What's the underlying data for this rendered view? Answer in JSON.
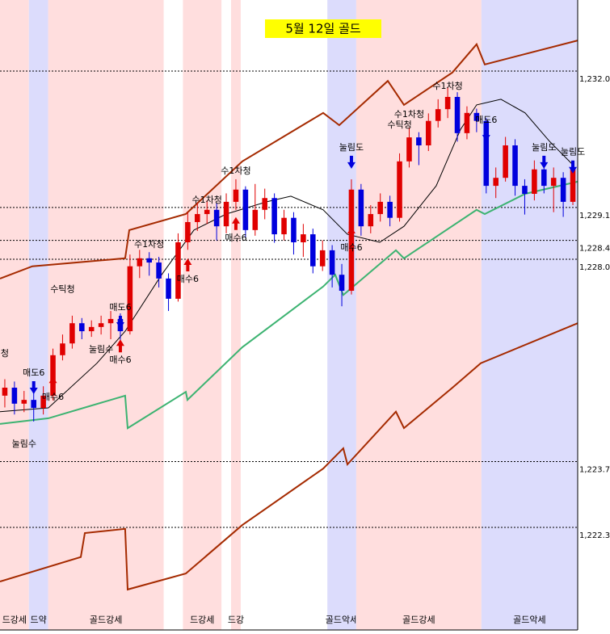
{
  "chart_data": {
    "type": "candlestick",
    "title": "5월 12일 골드",
    "xlim": [
      -0.5,
      59.5
    ],
    "ylim": [
      1220.12,
      1233.51
    ],
    "yticks": [
      {
        "value": 1232.0,
        "label": "1,232.0"
      },
      {
        "value": 1229.1,
        "label": "1,229.1"
      },
      {
        "value": 1228.4,
        "label": "1,228.4"
      },
      {
        "value": 1228.0,
        "label": "1,228.0"
      },
      {
        "value": 1223.7,
        "label": "1,223.7"
      },
      {
        "value": 1222.3,
        "label": "1,222.3"
      }
    ],
    "up_color": "#e00000",
    "down_color": "#0000dd",
    "bands": [
      {
        "from": 0,
        "to": 2,
        "color": "#ffdede",
        "label": "드강세"
      },
      {
        "from": 3,
        "to": 4,
        "color": "#dcdcfc",
        "label": "드약"
      },
      {
        "from": 5,
        "to": 16,
        "color": "#ffdede",
        "label": "골드강세"
      },
      {
        "from": 19,
        "to": 22,
        "color": "#ffdede",
        "label": "드강세"
      },
      {
        "from": 24,
        "to": 24,
        "color": "#ffdede",
        "label": "드강"
      },
      {
        "from": 34,
        "to": 36,
        "color": "#dcdcfc",
        "label": "골드악세"
      },
      {
        "from": 37,
        "to": 49,
        "color": "#ffdede",
        "label": "골드강세"
      },
      {
        "from": 50,
        "to": 59,
        "color": "#dcdcfc",
        "label": "골드악세"
      }
    ],
    "open": [
      1225.1,
      1225.27,
      1224.93,
      1225.01,
      1224.84,
      1225.1,
      1225.96,
      1226.21,
      1226.64,
      1226.47,
      1226.56,
      1226.64,
      1226.73,
      1226.47,
      1227.85,
      1228.02,
      1227.93,
      1227.59,
      1227.16,
      1228.36,
      1228.79,
      1228.96,
      1229.05,
      1228.7,
      1229.22,
      1229.48,
      1228.62,
      1229.05,
      1229.3,
      1228.53,
      1228.88,
      1228.36,
      1228.53,
      1227.85,
      1228.19,
      1227.67,
      1227.33,
      1229.48,
      1228.7,
      1228.96,
      1229.22,
      1228.88,
      1230.08,
      1230.59,
      1230.42,
      1230.94,
      1231.19,
      1231.45,
      1230.68,
      1231.11,
      1230.94,
      1229.56,
      1229.73,
      1230.42,
      1229.56,
      1229.39,
      1229.91,
      1229.56,
      1229.73,
      1229.22
    ],
    "high": [
      1225.45,
      1225.4,
      1225.2,
      1225.15,
      1225.3,
      1226.1,
      1226.4,
      1226.8,
      1226.75,
      1226.7,
      1226.8,
      1226.9,
      1226.85,
      1228.1,
      1228.2,
      1228.15,
      1228.05,
      1227.7,
      1228.55,
      1229.0,
      1229.2,
      1229.25,
      1229.2,
      1229.4,
      1229.7,
      1229.55,
      1229.6,
      1229.5,
      1229.4,
      1229.05,
      1229.0,
      1228.75,
      1228.65,
      1228.4,
      1228.3,
      1227.9,
      1229.7,
      1229.6,
      1229.15,
      1229.4,
      1229.35,
      1230.25,
      1230.8,
      1230.7,
      1231.1,
      1231.4,
      1231.65,
      1231.55,
      1231.25,
      1231.2,
      1231.0,
      1229.95,
      1230.6,
      1230.55,
      1229.7,
      1230.1,
      1230.05,
      1229.95,
      1229.85,
      1230.05
    ],
    "low": [
      1224.85,
      1224.7,
      1224.75,
      1224.55,
      1224.7,
      1225.0,
      1225.85,
      1226.1,
      1226.3,
      1226.35,
      1226.4,
      1226.3,
      1226.2,
      1226.4,
      1227.6,
      1227.65,
      1227.4,
      1226.9,
      1227.1,
      1228.2,
      1228.6,
      1228.75,
      1228.4,
      1228.55,
      1229.05,
      1228.45,
      1228.5,
      1228.85,
      1228.35,
      1228.4,
      1228.1,
      1228.05,
      1227.7,
      1227.75,
      1227.4,
      1227.0,
      1227.25,
      1228.5,
      1228.55,
      1228.8,
      1228.7,
      1228.8,
      1229.95,
      1230.0,
      1230.3,
      1230.8,
      1231.0,
      1230.5,
      1230.55,
      1230.7,
      1229.4,
      1229.3,
      1229.65,
      1229.35,
      1228.95,
      1229.25,
      1229.4,
      1229.0,
      1228.9,
      1229.15
    ],
    "close": [
      1225.27,
      1224.93,
      1225.01,
      1224.84,
      1225.1,
      1225.96,
      1226.21,
      1226.64,
      1226.47,
      1226.56,
      1226.64,
      1226.73,
      1226.47,
      1227.85,
      1228.02,
      1227.93,
      1227.59,
      1227.16,
      1228.36,
      1228.79,
      1228.96,
      1229.05,
      1228.7,
      1229.22,
      1229.48,
      1228.62,
      1229.05,
      1229.3,
      1228.53,
      1228.88,
      1228.36,
      1228.53,
      1227.85,
      1228.19,
      1227.67,
      1227.33,
      1229.48,
      1228.7,
      1228.96,
      1229.22,
      1228.88,
      1230.08,
      1230.59,
      1230.42,
      1230.94,
      1231.19,
      1231.45,
      1230.68,
      1231.11,
      1230.94,
      1229.56,
      1229.73,
      1230.42,
      1229.56,
      1229.39,
      1229.91,
      1229.56,
      1229.73,
      1229.22,
      1229.91
    ],
    "lines": [
      {
        "color": "#a52a00",
        "width": 2,
        "x": [
          -0.5,
          2.86,
          12.5,
          12.93,
          18.8,
          24.67,
          33.07,
          34.74,
          39.78,
          41.46,
          46.49,
          49.0,
          49.85,
          59.5
        ],
        "values": [
          1227.59,
          1227.85,
          1228.02,
          1228.62,
          1228.96,
          1230.08,
          1231.11,
          1230.85,
          1231.79,
          1231.28,
          1231.97,
          1232.57,
          1232.14,
          1232.65
        ]
      },
      {
        "color": "#a52a00",
        "width": 2,
        "x": [
          -0.5,
          7.89,
          8.31,
          12.5,
          12.76,
          18.8,
          24.67,
          33.07,
          35.16,
          35.58,
          40.62,
          41.46,
          46.49,
          49.43,
          59.5
        ],
        "values": [
          1221.15,
          1221.67,
          1222.18,
          1222.27,
          1220.98,
          1221.32,
          1222.35,
          1223.55,
          1223.98,
          1223.64,
          1224.76,
          1224.41,
          1225.27,
          1225.79,
          1226.64
        ]
      },
      {
        "color": "#3cb371",
        "width": 2,
        "x": [
          -0.5,
          4.53,
          12.5,
          12.76,
          18.8,
          18.97,
          24.67,
          33.07,
          34.32,
          35.16,
          40.62,
          41.46,
          49.0,
          49.85,
          54.04,
          59.5
        ],
        "values": [
          1224.5,
          1224.62,
          1225.1,
          1224.41,
          1225.18,
          1225.01,
          1226.13,
          1227.42,
          1227.67,
          1227.24,
          1228.19,
          1228.02,
          1229.05,
          1228.96,
          1229.39,
          1229.65
        ]
      },
      {
        "color": "#000000",
        "width": 1,
        "x": [
          -0.5,
          4.53,
          9.57,
          12.5,
          16.28,
          19.64,
          23.0,
          27.19,
          29.71,
          33.07,
          35.58,
          38.94,
          41.46,
          44.81,
          47.33,
          49.0,
          51.53,
          54.04,
          56.56,
          59.08
        ],
        "values": [
          1224.76,
          1224.84,
          1225.79,
          1226.47,
          1227.67,
          1228.62,
          1228.96,
          1229.22,
          1229.34,
          1229.05,
          1228.53,
          1228.36,
          1228.7,
          1229.56,
          1230.76,
          1231.28,
          1231.4,
          1231.11,
          1230.51,
          1229.99
        ]
      }
    ],
    "annotations": [
      {
        "label": "청",
        "bar": 0,
        "price": 1225.99
      },
      {
        "label": "눌림수",
        "bar": 2,
        "price": 1224.07
      },
      {
        "label": "매도6",
        "bar": 3,
        "price": 1225.58,
        "signal": "sell"
      },
      {
        "label": "매수6",
        "bar": 5,
        "price": 1225.06,
        "signal": "buy"
      },
      {
        "label": "수틱청",
        "bar": 6,
        "price": 1227.36
      },
      {
        "label": "눌림수",
        "bar": 10,
        "price": 1226.08
      },
      {
        "label": "매도6",
        "bar": 12,
        "price": 1226.97,
        "signal": "sell"
      },
      {
        "label": "매수6",
        "bar": 12,
        "price": 1225.85,
        "signal": "buy"
      },
      {
        "label": "수1차청",
        "bar": 15,
        "price": 1228.31
      },
      {
        "label": "매수6",
        "bar": 19,
        "price": 1227.57,
        "signal": "buy"
      },
      {
        "label": "수1차청",
        "bar": 21,
        "price": 1229.25
      },
      {
        "label": "매수6",
        "bar": 24,
        "price": 1228.45,
        "signal": "buy"
      },
      {
        "label": "수1차청",
        "bar": 24,
        "price": 1229.87
      },
      {
        "label": "눌림도",
        "bar": 36,
        "price": 1230.37,
        "signal": "sell"
      },
      {
        "label": "매수6",
        "bar": 36,
        "price": 1228.24,
        "signal": "buy"
      },
      {
        "label": "수틱청",
        "bar": 41,
        "price": 1230.85
      },
      {
        "label": "수1차청",
        "bar": 42,
        "price": 1231.07
      },
      {
        "label": "수1차청",
        "bar": 46,
        "price": 1231.67
      },
      {
        "label": "매도6",
        "bar": 50,
        "price": 1230.95,
        "signal": "sell"
      },
      {
        "label": "눌림도",
        "bar": 56,
        "price": 1230.37,
        "signal": "sell"
      },
      {
        "label": "눌림도",
        "bar": 59,
        "price": 1230.27,
        "signal": "sell"
      }
    ]
  }
}
